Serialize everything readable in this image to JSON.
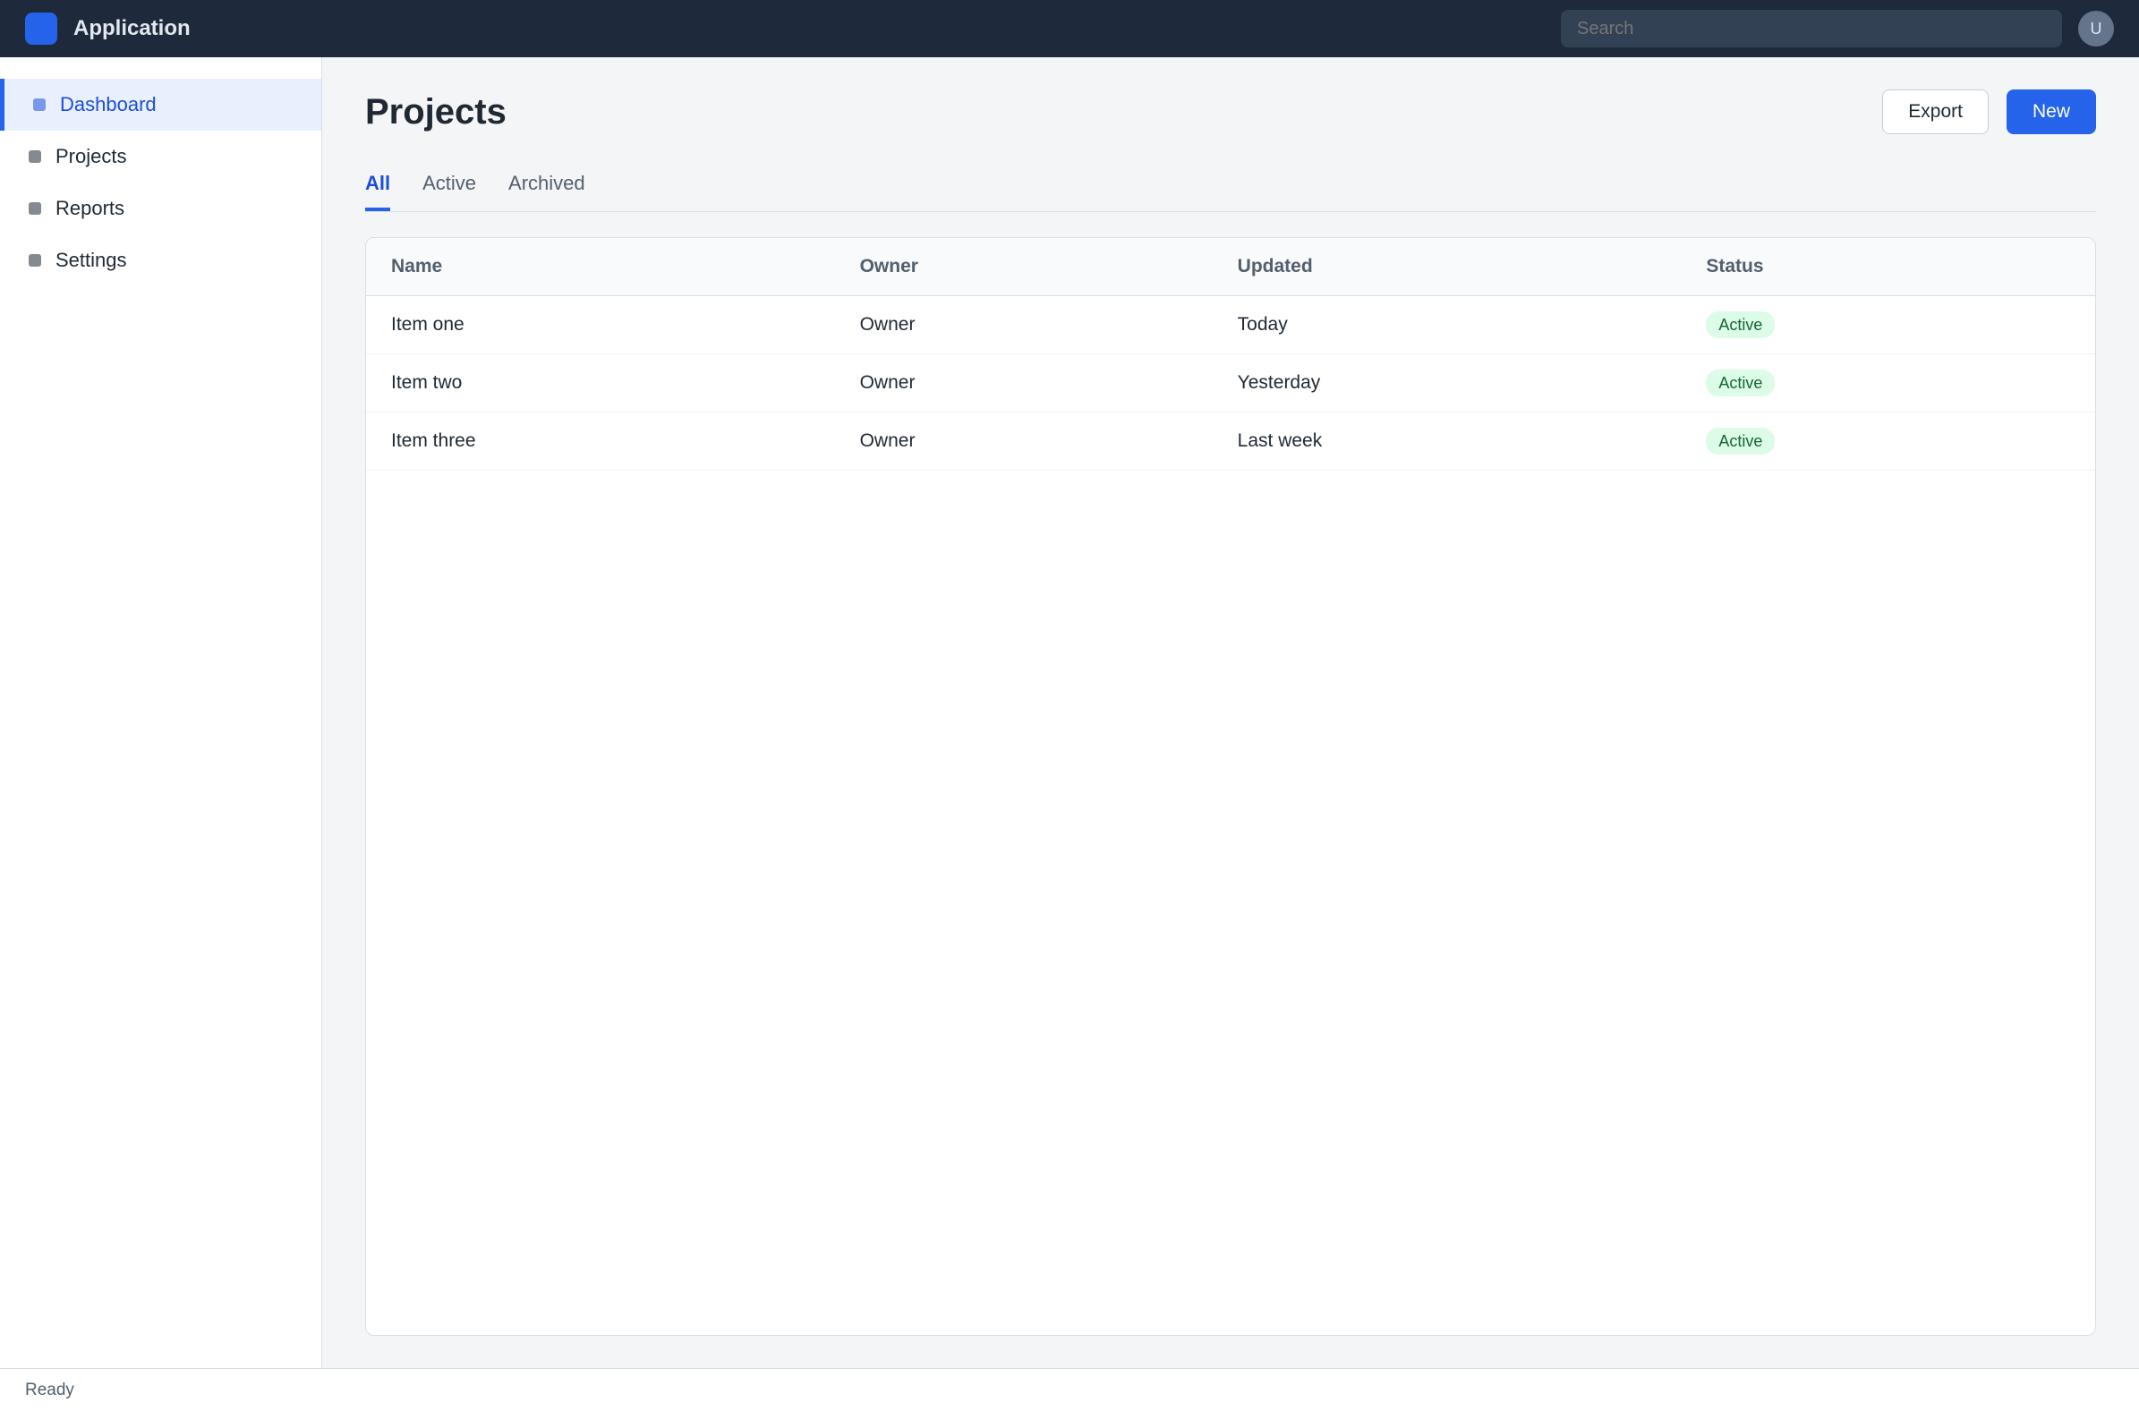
{
  "header": {
    "title": "Application",
    "search_placeholder": "Search",
    "avatar_initials": "U"
  },
  "sidebar": {
    "items": [
      {
        "label": "Dashboard"
      },
      {
        "label": "Projects"
      },
      {
        "label": "Reports"
      },
      {
        "label": "Settings"
      }
    ]
  },
  "main": {
    "title": "Projects",
    "primary_action": "New",
    "secondary_action": "Export",
    "tabs": [
      {
        "label": "All"
      },
      {
        "label": "Active"
      },
      {
        "label": "Archived"
      }
    ],
    "columns": [
      "Name",
      "Owner",
      "Updated",
      "Status"
    ],
    "rows": [
      [
        "Item one",
        "Owner",
        "Today",
        "Active"
      ],
      [
        "Item two",
        "Owner",
        "Yesterday",
        "Active"
      ],
      [
        "Item three",
        "Owner",
        "Last week",
        "Active"
      ]
    ]
  },
  "status": {
    "text": "Ready"
  },
  "colors": {
    "accent": "#2563eb",
    "header_bg": "#1e293b"
  }
}
